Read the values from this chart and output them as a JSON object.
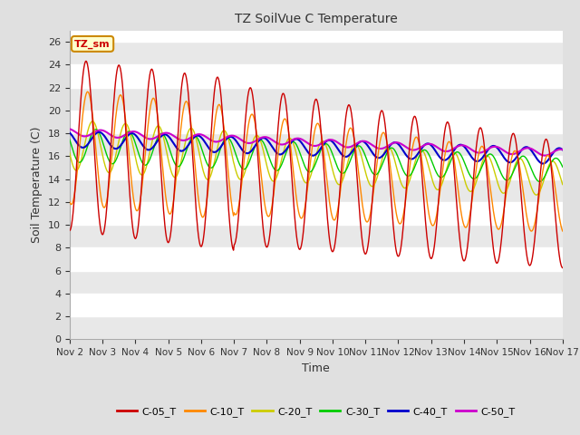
{
  "title": "TZ SoilVue C Temperature",
  "xlabel": "Time",
  "ylabel": "Soil Temperature (C)",
  "ylim": [
    0,
    27
  ],
  "yticks": [
    0,
    2,
    4,
    6,
    8,
    10,
    12,
    14,
    16,
    18,
    20,
    22,
    24,
    26
  ],
  "fig_bg": "#e0e0e0",
  "plot_bg": "#ffffff",
  "annotation_text": "TZ_sm",
  "annotation_bg": "#ffffcc",
  "annotation_border": "#cc8800",
  "series": [
    {
      "label": "C-05_T",
      "color": "#cc0000"
    },
    {
      "label": "C-10_T",
      "color": "#ff8800"
    },
    {
      "label": "C-20_T",
      "color": "#cccc00"
    },
    {
      "label": "C-30_T",
      "color": "#00cc00"
    },
    {
      "label": "C-40_T",
      "color": "#0000cc"
    },
    {
      "label": "C-50_T",
      "color": "#cc00cc"
    }
  ],
  "x_start": 2,
  "x_end": 17,
  "num_points": 720,
  "xtick_labels": [
    "Nov 2",
    "Nov 3",
    "Nov 4",
    "Nov 5",
    "Nov 6",
    "Nov 7",
    "Nov 8",
    "Nov 9",
    "Nov 10",
    "Nov 11",
    "Nov 12",
    "Nov 13",
    "Nov 14",
    "Nov 15",
    "Nov 16",
    "Nov 17"
  ],
  "xtick_positions": [
    2,
    3,
    4,
    5,
    6,
    7,
    8,
    9,
    10,
    11,
    12,
    13,
    14,
    15,
    16,
    17
  ]
}
